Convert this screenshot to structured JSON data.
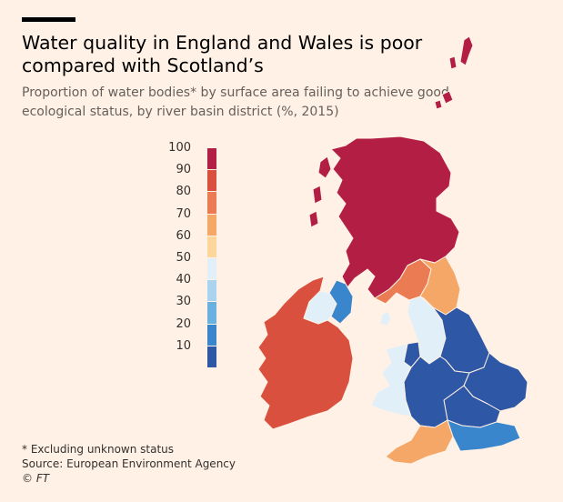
{
  "header": {
    "title": "Water quality in England and Wales is poor compared with Scotland’s",
    "subtitle": "Proportion of water bodies* by surface area failing to achieve good ecological status, by river basin district (%, 2015)"
  },
  "legend": {
    "ticks": [
      "100",
      "90",
      "80",
      "70",
      "60",
      "50",
      "40",
      "30",
      "20",
      "10"
    ],
    "bands": [
      {
        "min": 90,
        "max": 100,
        "color": "#b31f44"
      },
      {
        "min": 80,
        "max": 90,
        "color": "#d9503e"
      },
      {
        "min": 70,
        "max": 80,
        "color": "#ea7b52"
      },
      {
        "min": 60,
        "max": 70,
        "color": "#f4a766"
      },
      {
        "min": 50,
        "max": 60,
        "color": "#fcd69a"
      },
      {
        "min": 40,
        "max": 50,
        "color": "#e1f0f8"
      },
      {
        "min": 30,
        "max": 40,
        "color": "#a9d3ef"
      },
      {
        "min": 20,
        "max": 30,
        "color": "#6bb1e0"
      },
      {
        "min": 10,
        "max": 20,
        "color": "#3a86cc"
      },
      {
        "min": 0,
        "max": 10,
        "color": "#2e57a6"
      }
    ]
  },
  "regions": [
    {
      "id": "scotland",
      "band": 0
    },
    {
      "id": "solway-tweed",
      "band": 2
    },
    {
      "id": "northumbria",
      "band": 3
    },
    {
      "id": "north-west",
      "band": 5
    },
    {
      "id": "humber",
      "band": 9
    },
    {
      "id": "anglian",
      "band": 9
    },
    {
      "id": "thames",
      "band": 9
    },
    {
      "id": "severn",
      "band": 9
    },
    {
      "id": "dee",
      "band": 9
    },
    {
      "id": "western-wales",
      "band": 5
    },
    {
      "id": "south-west",
      "band": 3
    },
    {
      "id": "south-east",
      "band": 8
    },
    {
      "id": "ireland",
      "band": 1
    },
    {
      "id": "northern-ireland-west",
      "band": 5
    },
    {
      "id": "northern-ireland-east",
      "band": 8
    },
    {
      "id": "isle-of-man",
      "band": 5
    }
  ],
  "footer": {
    "note": "* Excluding unknown status",
    "source": "Source: European Environment Agency",
    "credit": "© FT"
  }
}
